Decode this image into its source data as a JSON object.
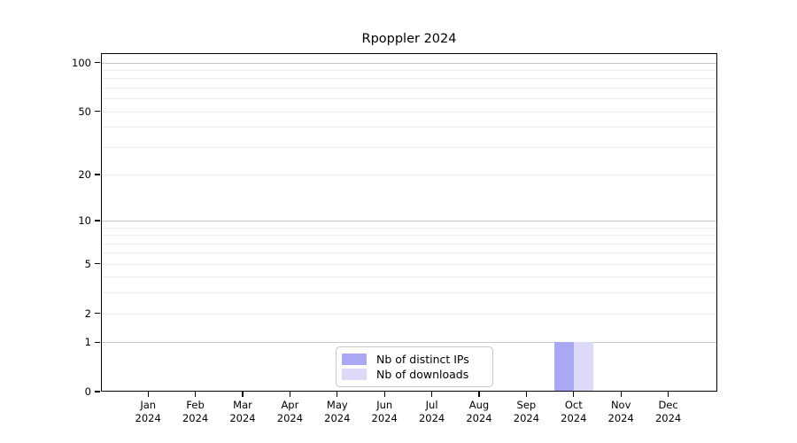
{
  "chart_data": {
    "type": "bar",
    "title": "Rpoppler 2024",
    "categories": [
      "Jan",
      "Feb",
      "Mar",
      "Apr",
      "May",
      "Jun",
      "Jul",
      "Aug",
      "Sep",
      "Oct",
      "Nov",
      "Dec"
    ],
    "x_year_label": "2024",
    "series": [
      {
        "name": "Nb of distinct IPs",
        "color": "#a8a8f4",
        "values": [
          0,
          0,
          0,
          0,
          0,
          0,
          0,
          0,
          0,
          1,
          0,
          0
        ]
      },
      {
        "name": "Nb of downloads",
        "color": "#dbdbf8",
        "values": [
          0,
          0,
          0,
          0,
          0,
          0,
          0,
          0,
          0,
          1,
          0,
          0
        ]
      }
    ],
    "y_axis": {
      "scale": "log1p",
      "tick_values": [
        0,
        1,
        2,
        5,
        10,
        20,
        50,
        100
      ],
      "ylim": [
        0,
        114
      ],
      "major_grid_values": [
        1,
        10,
        100
      ],
      "minor_grid_values": [
        2,
        3,
        4,
        5,
        6,
        7,
        8,
        9,
        20,
        30,
        40,
        50,
        60,
        70,
        80,
        90
      ]
    },
    "legend_position": "bottom-center",
    "grid": true,
    "colors": {
      "major_grid": "#c8c8c8",
      "minor_grid": "#eeeeee",
      "axis": "#000000",
      "background": "#ffffff",
      "legend_border": "#c8c8c8"
    }
  }
}
